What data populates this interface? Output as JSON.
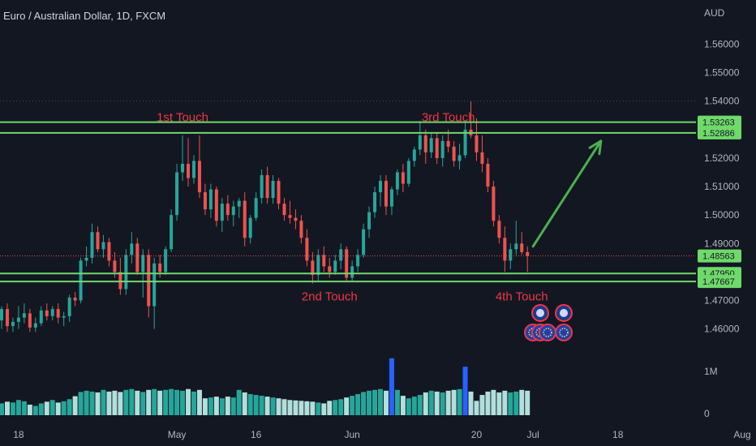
{
  "symbol_title": "Euro / Australian Dollar, 1D, FXCM",
  "currency": "AUD",
  "colors": {
    "background": "#131722",
    "up": "#26a69a",
    "down": "#ef5350",
    "level": "#6fd96a",
    "annotation": "#f23645",
    "arrow": "#4caf50",
    "vol_up": "#26a69a",
    "vol_down": "#b2dfdb",
    "vol_highlight": "#2962ff",
    "price_line": "#ef5350"
  },
  "chart_data": {
    "type": "candlestick",
    "title": "Euro / Australian Dollar, 1D, FXCM",
    "y_axis": {
      "unit": "AUD",
      "range": [
        1.4545,
        1.5755
      ],
      "ticks": [
        "1.56000",
        "1.55000",
        "1.54000",
        "1.53000",
        "1.52000",
        "1.51000",
        "1.50000",
        "1.49000",
        "1.48000",
        "1.47000",
        "1.46000"
      ]
    },
    "x_axis": {
      "ticks": [
        "18",
        "May",
        "16",
        "Jun",
        "20",
        "Jul",
        "18",
        "Aug"
      ],
      "tick_day_index": [
        3,
        31,
        45,
        62,
        84,
        94,
        109,
        131
      ]
    },
    "volume_axis": {
      "ticks": [
        "1M",
        "0"
      ]
    },
    "candles": [
      [
        1.463,
        1.468,
        1.46,
        1.467
      ],
      [
        1.467,
        1.469,
        1.459,
        1.461
      ],
      [
        1.461,
        1.464,
        1.459,
        1.4625
      ],
      [
        1.4625,
        1.468,
        1.46,
        1.464
      ],
      [
        1.464,
        1.469,
        1.462,
        1.4655
      ],
      [
        1.4655,
        1.467,
        1.459,
        1.4605
      ],
      [
        1.4605,
        1.464,
        1.459,
        1.462
      ],
      [
        1.462,
        1.468,
        1.461,
        1.4665
      ],
      [
        1.4665,
        1.469,
        1.463,
        1.4645
      ],
      [
        1.4645,
        1.468,
        1.463,
        1.467
      ],
      [
        1.467,
        1.469,
        1.462,
        1.464
      ],
      [
        1.464,
        1.466,
        1.461,
        1.4645
      ],
      [
        1.4645,
        1.472,
        1.4625,
        1.471
      ],
      [
        1.471,
        1.473,
        1.468,
        1.47
      ],
      [
        1.47,
        1.485,
        1.469,
        1.484
      ],
      [
        1.484,
        1.489,
        1.482,
        1.485
      ],
      [
        1.485,
        1.497,
        1.483,
        1.494
      ],
      [
        1.494,
        1.496,
        1.487,
        1.488
      ],
      [
        1.488,
        1.493,
        1.485,
        1.4905
      ],
      [
        1.4905,
        1.492,
        1.482,
        1.484
      ],
      [
        1.484,
        1.487,
        1.478,
        1.48
      ],
      [
        1.48,
        1.485,
        1.472,
        1.474
      ],
      [
        1.474,
        1.488,
        1.472,
        1.486
      ],
      [
        1.486,
        1.494,
        1.483,
        1.49
      ],
      [
        1.49,
        1.492,
        1.479,
        1.48
      ],
      [
        1.48,
        1.488,
        1.471,
        1.486
      ],
      [
        1.486,
        1.488,
        1.464,
        1.468
      ],
      [
        1.468,
        1.485,
        1.46,
        1.483
      ],
      [
        1.483,
        1.486,
        1.478,
        1.48
      ],
      [
        1.48,
        1.489,
        1.479,
        1.488
      ],
      [
        1.488,
        1.502,
        1.487,
        1.5
      ],
      [
        1.5,
        1.518,
        1.498,
        1.515
      ],
      [
        1.515,
        1.528,
        1.512,
        1.518
      ],
      [
        1.518,
        1.527,
        1.51,
        1.513
      ],
      [
        1.513,
        1.521,
        1.511,
        1.519
      ],
      [
        1.519,
        1.528,
        1.506,
        1.508
      ],
      [
        1.508,
        1.511,
        1.5,
        1.502
      ],
      [
        1.502,
        1.511,
        1.499,
        1.509
      ],
      [
        1.509,
        1.51,
        1.496,
        1.498
      ],
      [
        1.498,
        1.506,
        1.494,
        1.504
      ],
      [
        1.504,
        1.507,
        1.498,
        1.5
      ],
      [
        1.5,
        1.505,
        1.496,
        1.503
      ],
      [
        1.503,
        1.506,
        1.499,
        1.505
      ],
      [
        1.505,
        1.508,
        1.489,
        1.492
      ],
      [
        1.492,
        1.5,
        1.49,
        1.499
      ],
      [
        1.499,
        1.508,
        1.498,
        1.506
      ],
      [
        1.506,
        1.516,
        1.504,
        1.514
      ],
      [
        1.514,
        1.517,
        1.504,
        1.506
      ],
      [
        1.506,
        1.514,
        1.504,
        1.512
      ],
      [
        1.512,
        1.513,
        1.502,
        1.504
      ],
      [
        1.504,
        1.506,
        1.498,
        1.5
      ],
      [
        1.5,
        1.505,
        1.497,
        1.499
      ],
      [
        1.499,
        1.502,
        1.495,
        1.498
      ],
      [
        1.498,
        1.5,
        1.49,
        1.492
      ],
      [
        1.492,
        1.495,
        1.482,
        1.484
      ],
      [
        1.484,
        1.487,
        1.476,
        1.479
      ],
      [
        1.479,
        1.488,
        1.477,
        1.486
      ],
      [
        1.486,
        1.489,
        1.48,
        1.482
      ],
      [
        1.482,
        1.485,
        1.478,
        1.48
      ],
      [
        1.48,
        1.486,
        1.479,
        1.484
      ],
      [
        1.484,
        1.49,
        1.481,
        1.488
      ],
      [
        1.488,
        1.489,
        1.477,
        1.478
      ],
      [
        1.478,
        1.484,
        1.477,
        1.482
      ],
      [
        1.482,
        1.488,
        1.48,
        1.486
      ],
      [
        1.486,
        1.497,
        1.485,
        1.495
      ],
      [
        1.495,
        1.503,
        1.492,
        1.501
      ],
      [
        1.501,
        1.51,
        1.499,
        1.508
      ],
      [
        1.508,
        1.514,
        1.503,
        1.512
      ],
      [
        1.512,
        1.514,
        1.5,
        1.503
      ],
      [
        1.503,
        1.51,
        1.5,
        1.509
      ],
      [
        1.509,
        1.516,
        1.507,
        1.515
      ],
      [
        1.515,
        1.518,
        1.508,
        1.511
      ],
      [
        1.511,
        1.52,
        1.51,
        1.519
      ],
      [
        1.519,
        1.524,
        1.517,
        1.523
      ],
      [
        1.523,
        1.533,
        1.521,
        1.528
      ],
      [
        1.528,
        1.53,
        1.518,
        1.522
      ],
      [
        1.522,
        1.529,
        1.52,
        1.527
      ],
      [
        1.527,
        1.529,
        1.518,
        1.52
      ],
      [
        1.52,
        1.528,
        1.517,
        1.526
      ],
      [
        1.526,
        1.53,
        1.522,
        1.524
      ],
      [
        1.524,
        1.526,
        1.517,
        1.519
      ],
      [
        1.519,
        1.525,
        1.516,
        1.521
      ],
      [
        1.521,
        1.533,
        1.52,
        1.53
      ],
      [
        1.53,
        1.54,
        1.527,
        1.528
      ],
      [
        1.528,
        1.534,
        1.519,
        1.522
      ],
      [
        1.522,
        1.528,
        1.515,
        1.518
      ],
      [
        1.518,
        1.52,
        1.508,
        1.51
      ],
      [
        1.51,
        1.512,
        1.496,
        1.498
      ],
      [
        1.498,
        1.5,
        1.49,
        1.492
      ],
      [
        1.492,
        1.496,
        1.48,
        1.484
      ],
      [
        1.484,
        1.49,
        1.481,
        1.488
      ],
      [
        1.488,
        1.498,
        1.486,
        1.49
      ],
      [
        1.49,
        1.494,
        1.486,
        1.487
      ],
      [
        1.487,
        1.489,
        1.48,
        1.4856
      ]
    ],
    "volume": [
      0.28,
      0.32,
      0.3,
      0.36,
      0.33,
      0.25,
      0.22,
      0.28,
      0.32,
      0.36,
      0.3,
      0.33,
      0.38,
      0.45,
      0.55,
      0.58,
      0.56,
      0.54,
      0.6,
      0.56,
      0.58,
      0.55,
      0.6,
      0.62,
      0.58,
      0.55,
      0.6,
      0.62,
      0.58,
      0.6,
      0.62,
      0.6,
      0.58,
      0.62,
      0.56,
      0.6,
      0.4,
      0.42,
      0.44,
      0.4,
      0.44,
      0.42,
      0.6,
      0.54,
      0.5,
      0.48,
      0.46,
      0.44,
      0.42,
      0.4,
      0.38,
      0.36,
      0.35,
      0.34,
      0.33,
      0.32,
      0.3,
      0.28,
      0.34,
      0.36,
      0.38,
      0.42,
      0.46,
      0.5,
      0.55,
      0.58,
      0.6,
      0.62,
      0.58,
      1.35,
      0.6,
      0.46,
      0.4,
      0.44,
      0.48,
      0.54,
      0.58,
      0.56,
      0.54,
      0.58,
      0.6,
      0.62,
      1.15,
      0.56,
      0.34,
      0.48,
      0.56,
      0.6,
      0.54,
      0.58,
      0.54,
      0.56,
      0.6,
      0.58
    ],
    "volume_highlight_index": [
      69,
      82
    ],
    "horizontal_levels": [
      {
        "value": 1.53263,
        "label": "1.53263"
      },
      {
        "value": 1.52886,
        "label": "1.52886"
      },
      {
        "value": 1.4795,
        "label": "1.47950"
      },
      {
        "value": 1.47667,
        "label": "1.47667"
      }
    ],
    "last_price": {
      "value": 1.48563,
      "label": "1.48563"
    },
    "dotted_level": 1.54,
    "touch_labels": [
      {
        "text": "1st Touch",
        "day_index": 32,
        "price": 1.533
      },
      {
        "text": "2nd Touch",
        "day_index": 58,
        "price": 1.47
      },
      {
        "text": "3rd Touch",
        "day_index": 79,
        "price": 1.533
      },
      {
        "text": "4th Touch",
        "day_index": 92,
        "price": 1.47
      }
    ],
    "projection_arrow": {
      "from": [
        94,
        1.489
      ],
      "to": [
        106,
        1.526
      ]
    }
  }
}
